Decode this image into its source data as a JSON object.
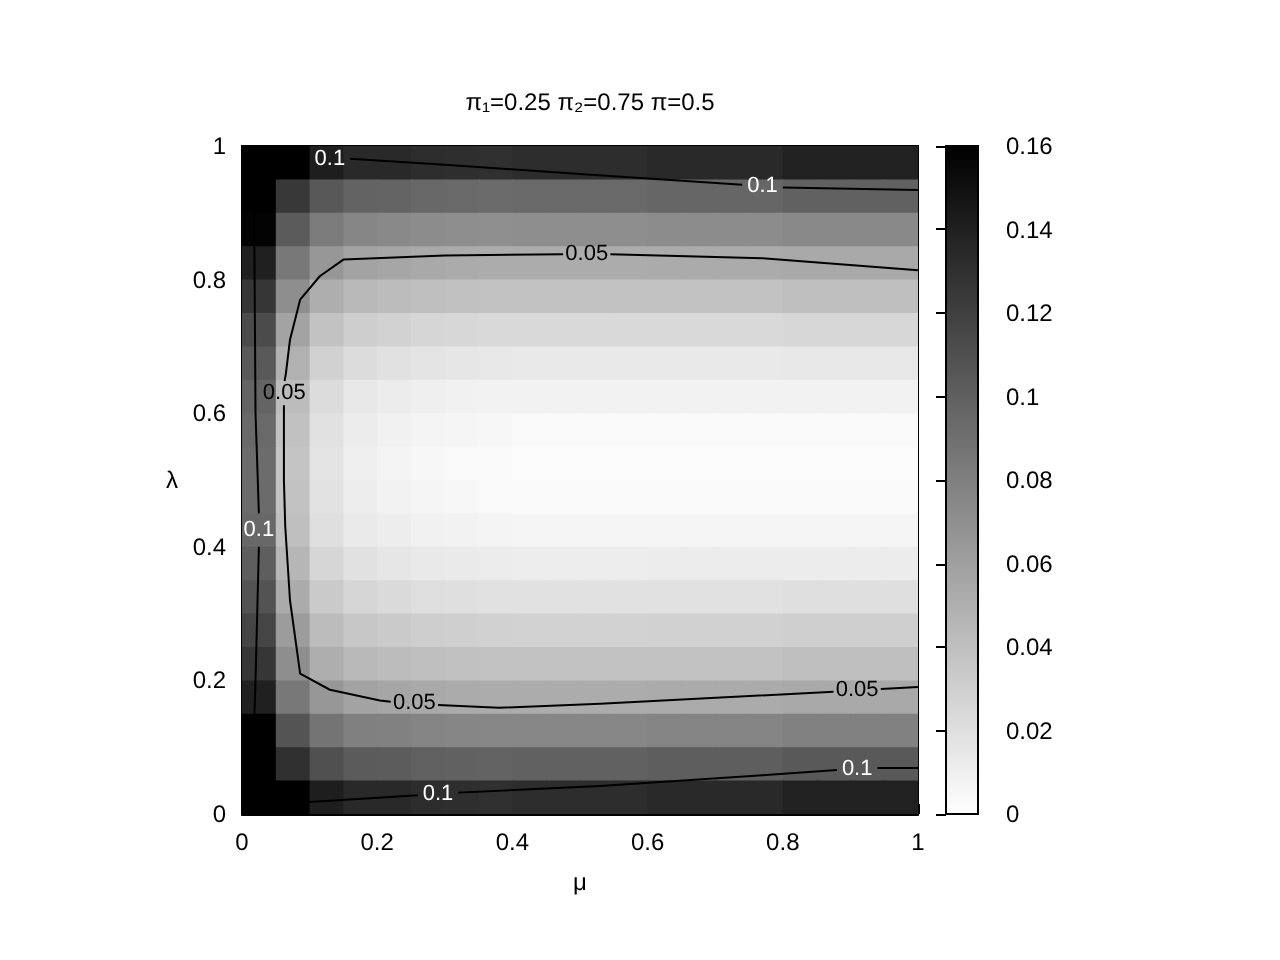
{
  "chart_data": {
    "type": "heatmap",
    "title": "π₁=0.25 π₂=0.75 π=0.5",
    "xlabel": "μ",
    "ylabel": "λ",
    "xlim": [
      0,
      1
    ],
    "ylim": [
      0,
      1
    ],
    "xticks": [
      0,
      0.2,
      0.4,
      0.6,
      0.8,
      1
    ],
    "yticks": [
      0,
      0.2,
      0.4,
      0.6,
      0.8,
      1
    ],
    "clim": [
      0,
      0.16
    ],
    "cticks": [
      0,
      0.02,
      0.04,
      0.06,
      0.08,
      0.1,
      0.12,
      0.14,
      0.16
    ],
    "grid": false,
    "x": [
      0.025,
      0.075,
      0.125,
      0.175,
      0.225,
      0.275,
      0.325,
      0.375,
      0.425,
      0.475,
      0.525,
      0.575,
      0.625,
      0.675,
      0.725,
      0.775,
      0.825,
      0.875,
      0.925,
      0.975
    ],
    "y": [
      0.975,
      0.925,
      0.875,
      0.825,
      0.775,
      0.725,
      0.675,
      0.625,
      0.575,
      0.525,
      0.475,
      0.425,
      0.375,
      0.325,
      0.275,
      0.225,
      0.175,
      0.125,
      0.075,
      0.025
    ],
    "cells": [
      [
        0.16,
        0.16,
        0.141,
        0.134,
        0.134,
        0.132,
        0.131,
        0.13,
        0.132,
        0.132,
        0.132,
        0.132,
        0.134,
        0.134,
        0.134,
        0.134,
        0.139,
        0.139,
        0.139,
        0.139
      ],
      [
        0.16,
        0.125,
        0.105,
        0.098,
        0.097,
        0.095,
        0.094,
        0.093,
        0.094,
        0.094,
        0.094,
        0.094,
        0.096,
        0.096,
        0.096,
        0.096,
        0.099,
        0.099,
        0.099,
        0.099
      ],
      [
        0.158,
        0.103,
        0.083,
        0.076,
        0.074,
        0.072,
        0.071,
        0.07,
        0.071,
        0.071,
        0.071,
        0.071,
        0.072,
        0.072,
        0.072,
        0.072,
        0.074,
        0.074,
        0.074,
        0.074
      ],
      [
        0.14,
        0.085,
        0.065,
        0.058,
        0.056,
        0.054,
        0.053,
        0.052,
        0.052,
        0.052,
        0.052,
        0.052,
        0.053,
        0.053,
        0.053,
        0.053,
        0.054,
        0.054,
        0.054,
        0.054
      ],
      [
        0.126,
        0.071,
        0.051,
        0.044,
        0.042,
        0.04,
        0.039,
        0.038,
        0.038,
        0.038,
        0.038,
        0.038,
        0.038,
        0.038,
        0.038,
        0.038,
        0.04,
        0.04,
        0.04,
        0.04
      ],
      [
        0.113,
        0.058,
        0.038,
        0.031,
        0.028,
        0.026,
        0.025,
        0.024,
        0.024,
        0.024,
        0.024,
        0.024,
        0.024,
        0.024,
        0.024,
        0.024,
        0.025,
        0.025,
        0.025,
        0.025
      ],
      [
        0.104,
        0.049,
        0.029,
        0.022,
        0.019,
        0.017,
        0.016,
        0.015,
        0.014,
        0.014,
        0.014,
        0.014,
        0.014,
        0.014,
        0.014,
        0.014,
        0.015,
        0.015,
        0.015,
        0.015
      ],
      [
        0.097,
        0.042,
        0.022,
        0.015,
        0.012,
        0.01,
        0.009,
        0.008,
        0.008,
        0.008,
        0.008,
        0.008,
        0.008,
        0.008,
        0.008,
        0.008,
        0.008,
        0.008,
        0.008,
        0.008
      ],
      [
        0.094,
        0.039,
        0.019,
        0.012,
        0.009,
        0.007,
        0.006,
        0.005,
        0.004,
        0.004,
        0.004,
        0.004,
        0.004,
        0.004,
        0.004,
        0.004,
        0.004,
        0.004,
        0.004,
        0.004
      ],
      [
        0.092,
        0.037,
        0.017,
        0.01,
        0.007,
        0.005,
        0.004,
        0.003,
        0.002,
        0.002,
        0.002,
        0.002,
        0.002,
        0.002,
        0.002,
        0.002,
        0.002,
        0.002,
        0.002,
        0.002
      ],
      [
        0.093,
        0.038,
        0.018,
        0.011,
        0.008,
        0.006,
        0.005,
        0.004,
        0.003,
        0.003,
        0.003,
        0.003,
        0.003,
        0.003,
        0.003,
        0.003,
        0.003,
        0.003,
        0.003,
        0.003
      ],
      [
        0.095,
        0.04,
        0.02,
        0.013,
        0.011,
        0.009,
        0.008,
        0.007,
        0.006,
        0.006,
        0.006,
        0.006,
        0.006,
        0.006,
        0.006,
        0.006,
        0.006,
        0.006,
        0.006,
        0.006
      ],
      [
        0.101,
        0.046,
        0.026,
        0.019,
        0.016,
        0.014,
        0.013,
        0.012,
        0.011,
        0.011,
        0.011,
        0.011,
        0.012,
        0.012,
        0.012,
        0.012,
        0.012,
        0.012,
        0.012,
        0.012
      ],
      [
        0.108,
        0.053,
        0.033,
        0.026,
        0.023,
        0.021,
        0.02,
        0.019,
        0.019,
        0.019,
        0.019,
        0.019,
        0.019,
        0.019,
        0.019,
        0.019,
        0.02,
        0.02,
        0.02,
        0.02
      ],
      [
        0.117,
        0.062,
        0.042,
        0.035,
        0.033,
        0.031,
        0.03,
        0.029,
        0.028,
        0.028,
        0.028,
        0.028,
        0.029,
        0.029,
        0.029,
        0.029,
        0.03,
        0.03,
        0.03,
        0.03
      ],
      [
        0.126,
        0.071,
        0.051,
        0.044,
        0.042,
        0.04,
        0.039,
        0.038,
        0.038,
        0.038,
        0.038,
        0.038,
        0.038,
        0.038,
        0.038,
        0.038,
        0.04,
        0.04,
        0.04,
        0.04
      ],
      [
        0.14,
        0.085,
        0.065,
        0.058,
        0.056,
        0.054,
        0.053,
        0.052,
        0.052,
        0.052,
        0.052,
        0.052,
        0.053,
        0.053,
        0.053,
        0.053,
        0.054,
        0.054,
        0.054,
        0.054
      ],
      [
        0.16,
        0.107,
        0.087,
        0.08,
        0.079,
        0.077,
        0.076,
        0.075,
        0.075,
        0.075,
        0.075,
        0.075,
        0.077,
        0.077,
        0.077,
        0.077,
        0.079,
        0.079,
        0.079,
        0.079
      ],
      [
        0.16,
        0.13,
        0.11,
        0.103,
        0.102,
        0.1,
        0.099,
        0.098,
        0.099,
        0.099,
        0.099,
        0.099,
        0.101,
        0.101,
        0.101,
        0.101,
        0.104,
        0.104,
        0.104,
        0.104
      ],
      [
        0.16,
        0.16,
        0.141,
        0.134,
        0.134,
        0.132,
        0.131,
        0.13,
        0.132,
        0.132,
        0.132,
        0.132,
        0.134,
        0.134,
        0.134,
        0.134,
        0.139,
        0.139,
        0.139,
        0.139
      ]
    ],
    "marker": "none",
    "series": [
      {
        "type": "line",
        "name": "0.1",
        "color": "#000000",
        "x": [
          1,
          0.8,
          null,
          0.74,
          0.5,
          0.3,
          0.16,
          null,
          0.1,
          0.04,
          0.02,
          0.018,
          0.02,
          0.025,
          null,
          0.025,
          0.02,
          0.015,
          0.03,
          0.1,
          0.26,
          null,
          0.32,
          0.53,
          0.77,
          0.88,
          null,
          0.94,
          1
        ],
        "values": [
          0.934,
          0.938,
          null,
          0.942,
          0.958,
          0.972,
          0.981,
          null,
          0.981,
          0.978,
          0.96,
          0.9,
          0.6,
          0.45,
          null,
          0.4,
          0.2,
          0.04,
          0.02,
          0.018,
          0.028,
          null,
          0.032,
          0.042,
          0.058,
          0.066,
          null,
          0.069,
          0.069
        ]
      },
      {
        "type": "line",
        "name": "0.05",
        "color": "#000000",
        "x": [
          1,
          0.77,
          0.545,
          null,
          0.475,
          0.3,
          0.15,
          0.115,
          0.086,
          0.071,
          0.065,
          0.063,
          null,
          0.062,
          0.062,
          0.064,
          0.071,
          0.086,
          0.13,
          0.204,
          0.22,
          null,
          0.29,
          0.38,
          0.53,
          0.875,
          null,
          0.945,
          1
        ],
        "values": [
          0.814,
          0.832,
          0.838,
          null,
          0.838,
          0.836,
          0.83,
          0.805,
          0.77,
          0.71,
          0.66,
          0.648,
          null,
          0.612,
          0.5,
          0.43,
          0.32,
          0.21,
          0.186,
          0.17,
          0.168,
          null,
          0.163,
          0.159,
          0.165,
          0.183,
          null,
          0.187,
          0.19
        ]
      }
    ]
  }
}
